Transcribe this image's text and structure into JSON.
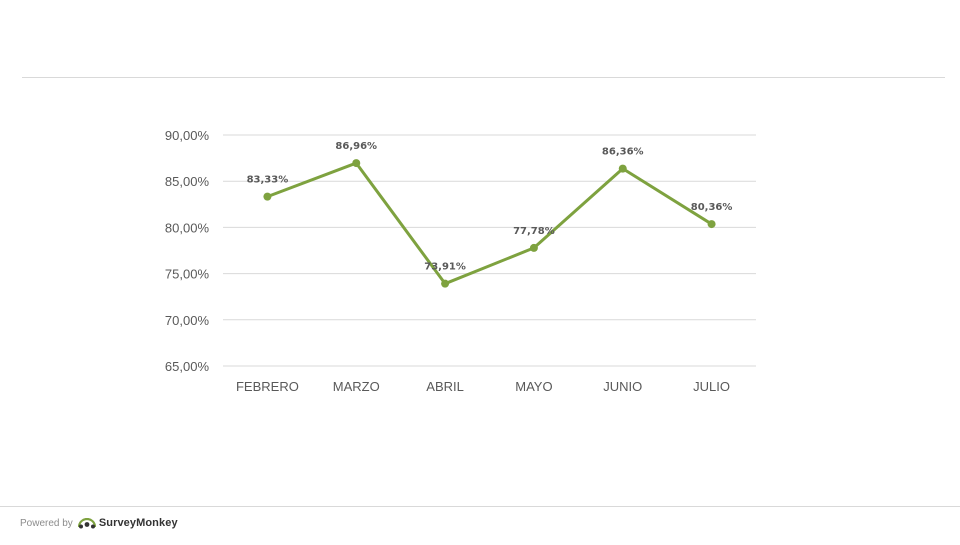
{
  "chart_data": {
    "type": "line",
    "categories": [
      "FEBRERO",
      "MARZO",
      "ABRIL",
      "MAYO",
      "JUNIO",
      "JULIO"
    ],
    "series": [
      {
        "values": [
          83.33,
          86.96,
          73.91,
          77.78,
          86.36,
          80.36
        ],
        "labels": [
          "83,33%",
          "86,96%",
          "73,91%",
          "77,78%",
          "86,36%",
          "80,36%"
        ],
        "color": "#7ea23f"
      }
    ],
    "ylim": [
      65,
      90
    ],
    "yticks": [
      65,
      70,
      75,
      80,
      85,
      90
    ],
    "ytick_labels": [
      "65,00%",
      "70,00%",
      "75,00%",
      "80,00%",
      "85,00%",
      "90,00%"
    ],
    "grid": true,
    "gridline_color": "#d9d9d9",
    "title": "",
    "xlabel": "",
    "ylabel": ""
  },
  "footer": {
    "powered_by": "Powered by",
    "brand": "SurveyMonkey",
    "brand_icon": "surveymonkey-logo-icon"
  }
}
